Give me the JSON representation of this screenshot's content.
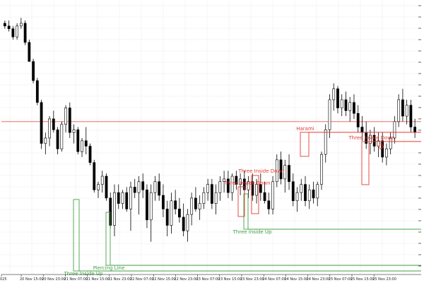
{
  "chart_data": {
    "type": "candlestick",
    "grid": true,
    "colors": {
      "background": "#ffffff",
      "grid": "#d8d8d8",
      "candle": "#000000",
      "bearish_pattern": "#e53935",
      "bullish_pattern": "#43a047"
    },
    "y_range": [
      0,
      100
    ],
    "x_tick_labels": [
      "025",
      "20 Nov 15:00",
      "20 Nov 23:00",
      "21 Nov 07:00",
      "21 Nov 15:00",
      "21 Nov 23:00",
      "22 Nov 07:00",
      "22 Nov 15:00",
      "22 Nov 23:00",
      "23 Nov 07:00",
      "23 Nov 15:00",
      "23 Nov 23:00",
      "24 Nov 07:00",
      "24 Nov 15:00",
      "24 Nov 23:00",
      "25 Nov 07:00",
      "25 Nov 15:00",
      "25 Nov 23:00"
    ],
    "horizontal_lines": [
      {
        "value": 56.0,
        "color": "#e53935"
      }
    ],
    "candles": [
      [
        92,
        93,
        90,
        91
      ],
      [
        91,
        93,
        89,
        90
      ],
      [
        90,
        91,
        86,
        87
      ],
      [
        87,
        92,
        86,
        91
      ],
      [
        91,
        94,
        90,
        92
      ],
      [
        92,
        93,
        84,
        85
      ],
      [
        85,
        86,
        78,
        78
      ],
      [
        78,
        79,
        70,
        71
      ],
      [
        71,
        72,
        62,
        63
      ],
      [
        63,
        64,
        46,
        48
      ],
      [
        48,
        52,
        44,
        50
      ],
      [
        50,
        58,
        47,
        57
      ],
      [
        57,
        60,
        52,
        53
      ],
      [
        53,
        54,
        44,
        46
      ],
      [
        46,
        56,
        45,
        55
      ],
      [
        55,
        62,
        52,
        61
      ],
      [
        61,
        63,
        50,
        52
      ],
      [
        52,
        55,
        48,
        53
      ],
      [
        53,
        54,
        44,
        45
      ],
      [
        45,
        50,
        43,
        49
      ],
      [
        49,
        54,
        44,
        47
      ],
      [
        47,
        48,
        40,
        41
      ],
      [
        41,
        42,
        30,
        31
      ],
      [
        31,
        34,
        28,
        33
      ],
      [
        33,
        38,
        30,
        36
      ],
      [
        36,
        37,
        27,
        28
      ],
      [
        28,
        30,
        17,
        18
      ],
      [
        18,
        33,
        14,
        30
      ],
      [
        30,
        33,
        24,
        26
      ],
      [
        26,
        31,
        24,
        30
      ],
      [
        30,
        32,
        23,
        24
      ],
      [
        24,
        34,
        16,
        32
      ],
      [
        32,
        35,
        28,
        30
      ],
      [
        30,
        36,
        22,
        34
      ],
      [
        34,
        37,
        28,
        31
      ],
      [
        31,
        33,
        17,
        20
      ],
      [
        20,
        33,
        12,
        30
      ],
      [
        30,
        36,
        27,
        34
      ],
      [
        34,
        37,
        27,
        29
      ],
      [
        29,
        33,
        21,
        24
      ],
      [
        24,
        27,
        14,
        18
      ],
      [
        18,
        30,
        15,
        27
      ],
      [
        27,
        31,
        22,
        24
      ],
      [
        24,
        28,
        19,
        21
      ],
      [
        21,
        26,
        14,
        16
      ],
      [
        16,
        24,
        12,
        22
      ],
      [
        22,
        30,
        18,
        28
      ],
      [
        28,
        32,
        23,
        24
      ],
      [
        24,
        29,
        20,
        26
      ],
      [
        26,
        32,
        24,
        30
      ],
      [
        30,
        35,
        27,
        33
      ],
      [
        33,
        35,
        24,
        26
      ],
      [
        26,
        33,
        22,
        30
      ],
      [
        30,
        36,
        27,
        34
      ],
      [
        34,
        38,
        30,
        35
      ],
      [
        35,
        38,
        28,
        30
      ],
      [
        30,
        37,
        27,
        36
      ],
      [
        36,
        38,
        31,
        33
      ],
      [
        33,
        37,
        29,
        35
      ],
      [
        35,
        38,
        29,
        31
      ],
      [
        31,
        36,
        28,
        34
      ],
      [
        34,
        37,
        27,
        29
      ],
      [
        29,
        35,
        26,
        33
      ],
      [
        33,
        37,
        27,
        30
      ],
      [
        30,
        34,
        26,
        27
      ],
      [
        27,
        30,
        22,
        24
      ],
      [
        24,
        36,
        22,
        34
      ],
      [
        34,
        44,
        32,
        42
      ],
      [
        42,
        45,
        33,
        35
      ],
      [
        35,
        42,
        30,
        40
      ],
      [
        40,
        44,
        31,
        34
      ],
      [
        34,
        37,
        25,
        27
      ],
      [
        27,
        32,
        23,
        30
      ],
      [
        30,
        35,
        27,
        33
      ],
      [
        33,
        36,
        25,
        27
      ],
      [
        27,
        33,
        24,
        31
      ],
      [
        31,
        34,
        26,
        28
      ],
      [
        28,
        34,
        25,
        33
      ],
      [
        33,
        45,
        31,
        44
      ],
      [
        44,
        55,
        41,
        53
      ],
      [
        53,
        66,
        50,
        64
      ],
      [
        64,
        70,
        60,
        68
      ],
      [
        68,
        69,
        59,
        61
      ],
      [
        61,
        66,
        58,
        64
      ],
      [
        64,
        67,
        58,
        60
      ],
      [
        60,
        65,
        56,
        63
      ],
      [
        63,
        66,
        57,
        59
      ],
      [
        59,
        62,
        52,
        54
      ],
      [
        54,
        58,
        49,
        52
      ],
      [
        52,
        56,
        46,
        48
      ],
      [
        48,
        53,
        44,
        51
      ],
      [
        51,
        54,
        45,
        47
      ],
      [
        47,
        52,
        43,
        49
      ],
      [
        49,
        52,
        41,
        43
      ],
      [
        43,
        48,
        40,
        46
      ],
      [
        46,
        52,
        44,
        50
      ],
      [
        50,
        58,
        48,
        56
      ],
      [
        56,
        66,
        54,
        64
      ],
      [
        64,
        68,
        56,
        58
      ],
      [
        58,
        64,
        55,
        62
      ],
      [
        62,
        64,
        52,
        54
      ],
      [
        54,
        57,
        50,
        52
      ]
    ],
    "annotations": [
      {
        "text": "Harami",
        "color": "#e53935"
      },
      {
        "text": "Three Inside Down",
        "color": "#e53935"
      },
      {
        "text": "Three Inside Down",
        "color": "#e53935"
      },
      {
        "text": "Three Inside Down",
        "color": "#e53935"
      },
      {
        "text": "Three Inside Up",
        "color": "#43a047"
      },
      {
        "text": "Piercing Line",
        "color": "#43a047"
      },
      {
        "text": "Three Inside Up",
        "color": "#43a047"
      }
    ]
  }
}
